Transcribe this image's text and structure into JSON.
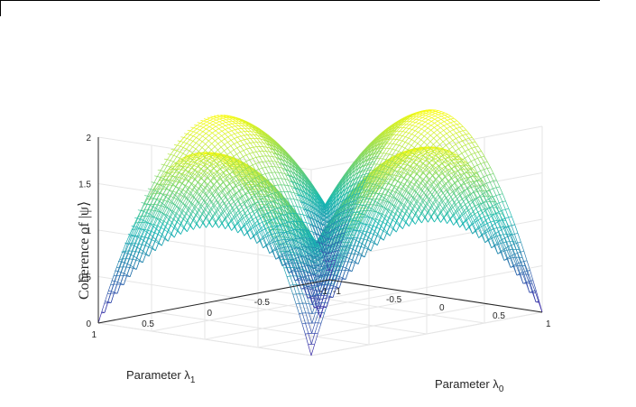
{
  "chart_data": {
    "type": "surface",
    "title": "",
    "xlabel": "Parameter λ",
    "xlabel_sub": "0",
    "ylabel": "Parameter λ",
    "ylabel_sub": "1",
    "zlabel": "Coherence of |ψ⟩",
    "xlim": [
      -1,
      1
    ],
    "ylim": [
      -1,
      1
    ],
    "zlim": [
      0,
      2
    ],
    "x_ticks": [
      "-1",
      "-0.5",
      "0",
      "0.5",
      "1"
    ],
    "y_ticks": [
      "-1",
      "-0.5",
      "0",
      "0.5",
      "1"
    ],
    "z_ticks": [
      "0",
      "0.5",
      "1",
      "1.5",
      "2"
    ],
    "grid": true,
    "colormap": "parula",
    "colors": {
      "low": "#3e26a8",
      "mid": "#17b8b2",
      "high": "#f9fb0e"
    },
    "peaks": [
      {
        "lambda0": -1,
        "lambda1": 0,
        "coherence": 2
      },
      {
        "lambda0": 0,
        "lambda1": 1,
        "coherence": 2
      },
      {
        "lambda0": 1,
        "lambda1": 0,
        "coherence": 2
      },
      {
        "lambda0": 0,
        "lambda1": -1,
        "coherence": 2
      }
    ]
  }
}
